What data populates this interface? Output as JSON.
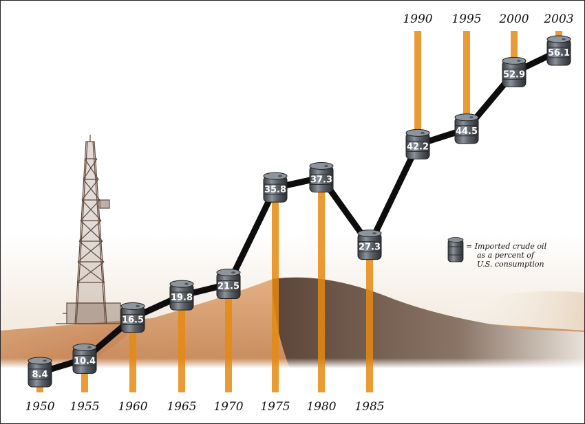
{
  "chart_data": {
    "type": "line",
    "x": [
      "1950",
      "1955",
      "1960",
      "1965",
      "1970",
      "1975",
      "1980",
      "1985",
      "1990",
      "1995",
      "2000",
      "2003"
    ],
    "values": [
      8.4,
      10.4,
      16.5,
      19.8,
      21.5,
      35.8,
      37.3,
      27.3,
      42.2,
      44.5,
      52.9,
      56.1
    ],
    "value_labels": [
      "8.4",
      "10.4",
      "16.5",
      "19.8",
      "21.5",
      "35.8",
      "37.3",
      "27.3",
      "42.2",
      "44.5",
      "52.9",
      "56.1"
    ],
    "title": "",
    "xlabel": "",
    "ylabel": "",
    "marker": "oil-barrel",
    "legend": {
      "lines": [
        "= Imported crude oil",
        "as a percent of",
        "U.S. consumption"
      ],
      "position": "right"
    },
    "colors": {
      "line": "#0d0d0d",
      "stem": "#e58a12",
      "barrel": "#5a5f65"
    }
  }
}
